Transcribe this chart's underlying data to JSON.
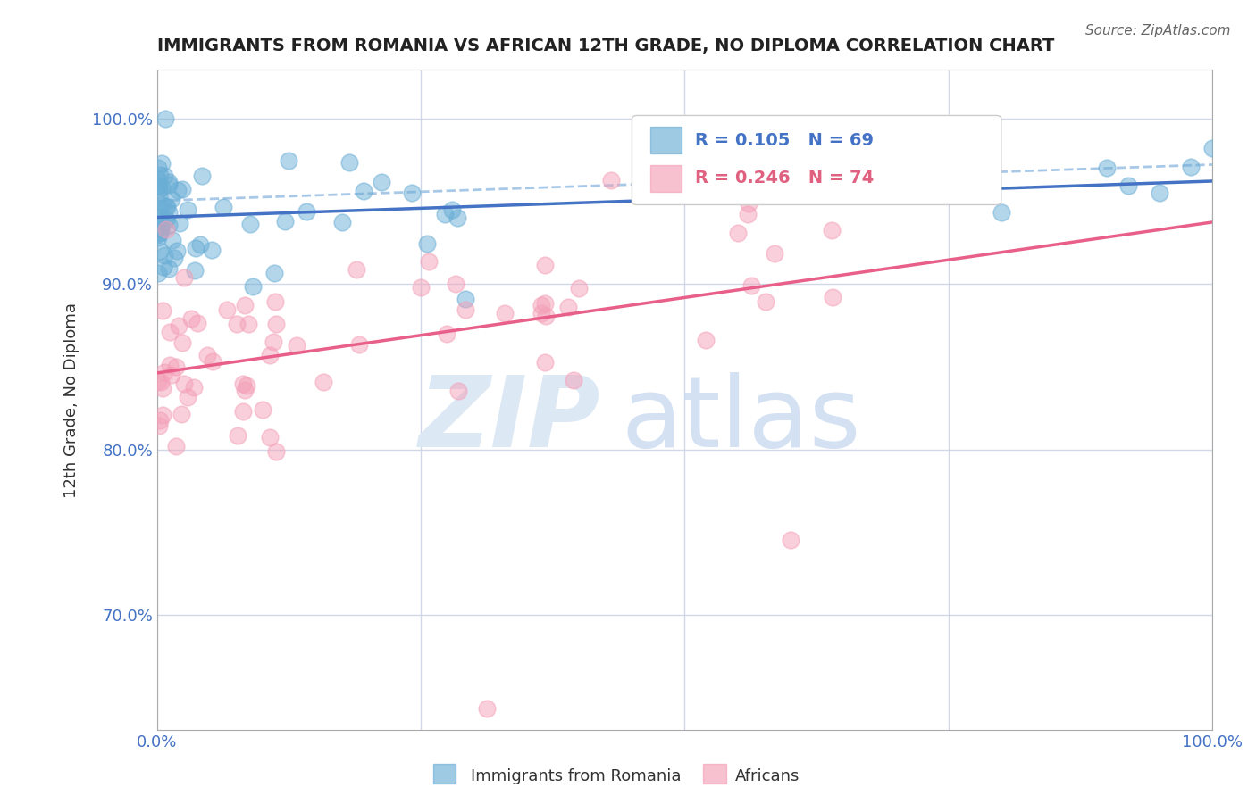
{
  "title": "IMMIGRANTS FROM ROMANIA VS AFRICAN 12TH GRADE, NO DIPLOMA CORRELATION CHART",
  "source": "Source: ZipAtlas.com",
  "ylabel": "12th Grade, No Diploma",
  "xlim": [
    0,
    1
  ],
  "ylim": [
    0.63,
    1.03
  ],
  "yticks": [
    0.7,
    0.8,
    0.9,
    1.0
  ],
  "ytick_labels": [
    "70.0%",
    "80.0%",
    "90.0%",
    "100.0%"
  ],
  "xtick_labels": [
    "0.0%",
    "100.0%"
  ],
  "blue_color": "#6aaed6",
  "pink_color": "#f4a0b8",
  "blue_line_color": "#4472c4",
  "pink_line_color": "#e8608a",
  "blue_dashed_color": "#a8c8e8",
  "grid_color": "#d0d8e8",
  "background_color": "#ffffff",
  "watermark_color": "#dce8f4",
  "legend_R_blue": "R = 0.105",
  "legend_N_blue": "N = 69",
  "legend_R_pink": "R = 0.246",
  "legend_N_pink": "N = 74",
  "legend_text_color": "#4472c4",
  "n_blue": 69,
  "n_pink": 74
}
